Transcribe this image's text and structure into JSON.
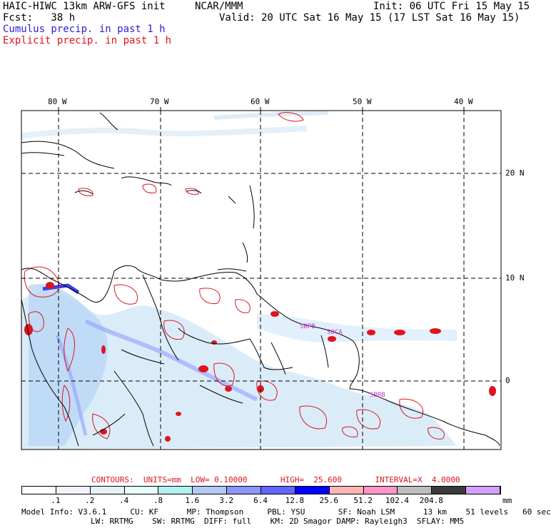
{
  "header": {
    "model_title": "HAIC-HIWC 13km ARW-GFS init",
    "org": "NCAR/MMM",
    "init": "Init: 06 UTC Fri 15 May 15",
    "fcst": "Fcst:   38 h",
    "valid": "Valid: 20 UTC Sat 16 May 15 (17 LST Sat 16 May 15)",
    "cumulus_label": "Cumulus precip. in past 1 h",
    "explicit_label": "Explicit precip. in past 1 h"
  },
  "map": {
    "lon_labels": [
      "80 W",
      "70 W",
      "60 W",
      "50 W",
      "40 W"
    ],
    "lat_labels": [
      "20 N",
      "10 N",
      "0"
    ],
    "station_labels": [
      "SBPB",
      "SOCA",
      "SBRB"
    ],
    "colors": {
      "coast": "#000000",
      "grid": "#000000",
      "explicit": "#e0141e",
      "cumulus_light": "#cfe6f7",
      "cumulus_mid": "#8fa0ff",
      "cumulus_dark": "#3c3cf0",
      "station": "#cc33cc"
    }
  },
  "contours": {
    "text": "CONTOURS:  UNITS=mm  LOW= 0.10000       HIGH=  25.600       INTERVAL=X  4.0000"
  },
  "colorbar": {
    "colors": [
      "#ffffff",
      "#f2f2ff",
      "#e6f2f2",
      "#e6fffa",
      "#b3f0f0",
      "#b3c8f5",
      "#8c96ff",
      "#6464ff",
      "#0000ff",
      "#ffb4b4",
      "#ff96c8",
      "#bebebe",
      "#3c3c3c",
      "#d2a0ff"
    ],
    "labels": [
      ".1",
      ".2",
      ".4",
      ".8",
      "1.6",
      "3.2",
      "6.4",
      "12.8",
      "25.6",
      "51.2",
      "102.4",
      "204.8"
    ],
    "unit": "mm"
  },
  "footer": {
    "line1": "Model Info: V3.6.1     CU: KF      MP: Thompson     PBL: YSU       SF: Noah LSM      13 km    51 levels   60 sec",
    "line2": "LW: RRTMG    SW: RRTMG  DIFF: full    KM: 2D Smagor DAMP: Rayleigh3  SFLAY: MM5"
  }
}
